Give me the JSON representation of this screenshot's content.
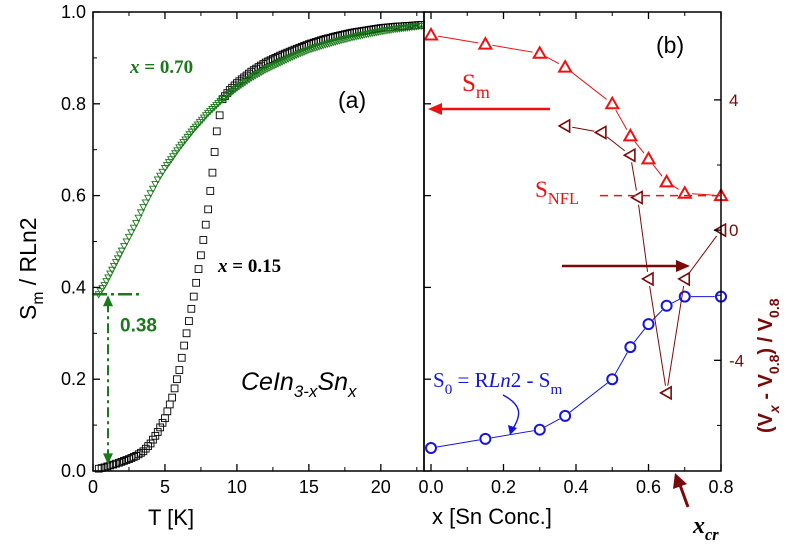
{
  "chart_data": [
    {
      "panel": "a",
      "type": "scatter",
      "panel_label": "(a)",
      "xlabel": "T  [K]",
      "ylabel": "S_m / RLn2",
      "xlim": [
        0,
        23
      ],
      "ylim": [
        0,
        1.0
      ],
      "xticks": [
        "0",
        "5",
        "10",
        "15",
        "20"
      ],
      "yticks": [
        "0.0",
        "0.2",
        "0.4",
        "0.6",
        "0.8",
        "1.0"
      ],
      "compound_label": {
        "base": "CeIn",
        "sub1": "3-x",
        "mid": "Sn",
        "sub2": "x"
      },
      "annotation": {
        "text": "0.38",
        "y": 0.385
      },
      "series": [
        {
          "name": "x = 0.15",
          "marker": "square",
          "color": "#000000",
          "points": [
            [
              0.4,
              0.005
            ],
            [
              0.8,
              0.008
            ],
            [
              1.2,
              0.012
            ],
            [
              1.8,
              0.018
            ],
            [
              2.5,
              0.026
            ],
            [
              3,
              0.033
            ],
            [
              3.5,
              0.043
            ],
            [
              4,
              0.06
            ],
            [
              4.5,
              0.085
            ],
            [
              5,
              0.115
            ],
            [
              5.5,
              0.16
            ],
            [
              6,
              0.22
            ],
            [
              6.5,
              0.3
            ],
            [
              7,
              0.38
            ],
            [
              7.5,
              0.47
            ],
            [
              8,
              0.57
            ],
            [
              8.3,
              0.65
            ],
            [
              8.6,
              0.74
            ],
            [
              9,
              0.81
            ],
            [
              9.5,
              0.83
            ],
            [
              10,
              0.845
            ],
            [
              11,
              0.87
            ],
            [
              12,
              0.89
            ],
            [
              13,
              0.905
            ],
            [
              14,
              0.918
            ],
            [
              15,
              0.93
            ],
            [
              16,
              0.94
            ],
            [
              17,
              0.948
            ],
            [
              18,
              0.955
            ],
            [
              19,
              0.96
            ],
            [
              20,
              0.965
            ],
            [
              21,
              0.968
            ],
            [
              22,
              0.97
            ],
            [
              22.8,
              0.972
            ]
          ]
        },
        {
          "name": "x = 0.70",
          "marker": "triangle-down",
          "color": "#1a7a1a",
          "points": [
            [
              0.4,
              0.385
            ],
            [
              0.8,
              0.405
            ],
            [
              1.2,
              0.43
            ],
            [
              1.6,
              0.455
            ],
            [
              2,
              0.48
            ],
            [
              2.5,
              0.51
            ],
            [
              3,
              0.54
            ],
            [
              3.5,
              0.575
            ],
            [
              4,
              0.605
            ],
            [
              4.5,
              0.635
            ],
            [
              5,
              0.66
            ],
            [
              6,
              0.705
            ],
            [
              7,
              0.745
            ],
            [
              8,
              0.78
            ],
            [
              9,
              0.81
            ],
            [
              10,
              0.835
            ],
            [
              11,
              0.857
            ],
            [
              12,
              0.875
            ],
            [
              13,
              0.89
            ],
            [
              14,
              0.905
            ],
            [
              15,
              0.918
            ],
            [
              16,
              0.928
            ],
            [
              17,
              0.937
            ],
            [
              18,
              0.945
            ],
            [
              19,
              0.952
            ],
            [
              20,
              0.958
            ],
            [
              21,
              0.963
            ],
            [
              22,
              0.967
            ],
            [
              22.8,
              0.97
            ]
          ]
        }
      ]
    },
    {
      "panel": "b",
      "type": "line",
      "panel_label": "(b)",
      "xlabel": "x [Sn Conc.]",
      "xlim": [
        0,
        0.8
      ],
      "ylim": [
        0,
        1.0
      ],
      "xticks": [
        "0.0",
        "0.2",
        "0.4",
        "0.6",
        "0.8"
      ],
      "right_axis": {
        "label": "(V_x - V_0.8) / V_0.8",
        "ylim": [
          -7.4,
          6.7
        ],
        "ticks": [
          "4",
          "0",
          "-4"
        ],
        "color": "#7a0a0a"
      },
      "annotations": {
        "s_m": "S_m",
        "s_nfl": "S_NFL",
        "s_0": "S_0 = RLn2 - S_m",
        "x_cr": "x_cr"
      },
      "series": [
        {
          "name": "S_m",
          "marker": "triangle-up",
          "color": "#ee1111",
          "x": [
            0.0,
            0.15,
            0.3,
            0.37,
            0.5,
            0.55,
            0.6,
            0.65,
            0.7,
            0.8
          ],
          "y": [
            0.95,
            0.93,
            0.91,
            0.88,
            0.8,
            0.73,
            0.68,
            0.63,
            0.605,
            0.6
          ]
        },
        {
          "name": "S_0",
          "marker": "circle",
          "color": "#1515dd",
          "x": [
            0.0,
            0.15,
            0.3,
            0.37,
            0.5,
            0.55,
            0.6,
            0.65,
            0.7,
            0.8
          ],
          "y": [
            0.05,
            0.07,
            0.09,
            0.12,
            0.2,
            0.27,
            0.32,
            0.36,
            0.38,
            0.38
          ]
        },
        {
          "name": "(V_x - V_0.8) / V_0.8",
          "axis": "right",
          "marker": "triangle-left",
          "color": "#7a0a0a",
          "x": [
            0.37,
            0.47,
            0.55,
            0.57,
            0.6,
            0.65,
            0.7,
            0.8
          ],
          "y": [
            3.2,
            3.0,
            2.3,
            1.0,
            -1.5,
            -5.0,
            -1.5,
            0.0
          ]
        }
      ]
    }
  ]
}
